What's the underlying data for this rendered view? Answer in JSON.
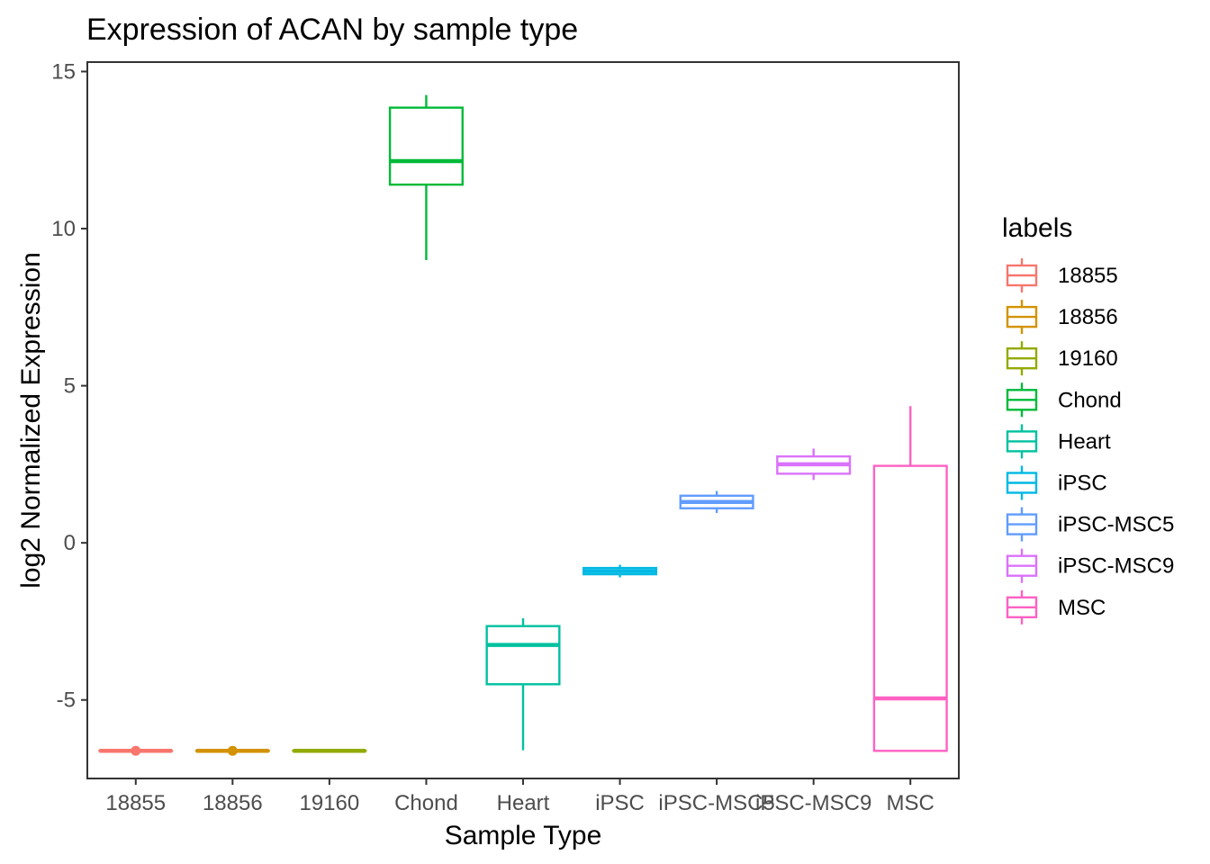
{
  "chart_data": {
    "type": "boxplot",
    "title": "Expression of ACAN by sample type",
    "xlabel": "Sample Type",
    "ylabel": "log2 Normalized Expression",
    "ylim": [
      -7.5,
      15.3
    ],
    "yticks": [
      -5,
      0,
      5,
      10,
      15
    ],
    "ytick_labels": [
      "-5",
      "0",
      "5",
      "10",
      "15"
    ],
    "grid": false,
    "legend": {
      "title": "labels",
      "placement": "right"
    },
    "categories": [
      "18855",
      "18856",
      "19160",
      "Chond",
      "Heart",
      "iPSC",
      "iPSC-MSC5",
      "iPSC-MSC9",
      "MSC"
    ],
    "series": [
      {
        "name": "18855",
        "color": "#F8766D",
        "min": -6.62,
        "q1": -6.62,
        "median": -6.62,
        "q3": -6.62,
        "max": -6.62,
        "point": -6.62
      },
      {
        "name": "18856",
        "color": "#D39200",
        "min": -6.62,
        "q1": -6.62,
        "median": -6.62,
        "q3": -6.62,
        "max": -6.62,
        "point": -6.62
      },
      {
        "name": "19160",
        "color": "#93AA00",
        "min": -6.62,
        "q1": -6.62,
        "median": -6.62,
        "q3": -6.62,
        "max": -6.62
      },
      {
        "name": "Chond",
        "color": "#00BA38",
        "min": 9.0,
        "q1": 11.4,
        "median": 12.15,
        "q3": 13.85,
        "max": 14.25
      },
      {
        "name": "Heart",
        "color": "#00C19F",
        "min": -6.6,
        "q1": -4.5,
        "median": -3.25,
        "q3": -2.65,
        "max": -2.4
      },
      {
        "name": "iPSC",
        "color": "#00B9E3",
        "min": -1.1,
        "q1": -1.0,
        "median": -0.9,
        "q3": -0.8,
        "max": -0.7
      },
      {
        "name": "iPSC-MSC5",
        "color": "#619CFF",
        "min": 0.95,
        "q1": 1.1,
        "median": 1.3,
        "q3": 1.5,
        "max": 1.65
      },
      {
        "name": "iPSC-MSC9",
        "color": "#DB72FB",
        "min": 2.0,
        "q1": 2.2,
        "median": 2.5,
        "q3": 2.75,
        "max": 3.0
      },
      {
        "name": "MSC",
        "color": "#FF61C3",
        "min": -6.62,
        "q1": -6.62,
        "median": -4.95,
        "q3": 2.45,
        "max": 4.35
      }
    ]
  }
}
